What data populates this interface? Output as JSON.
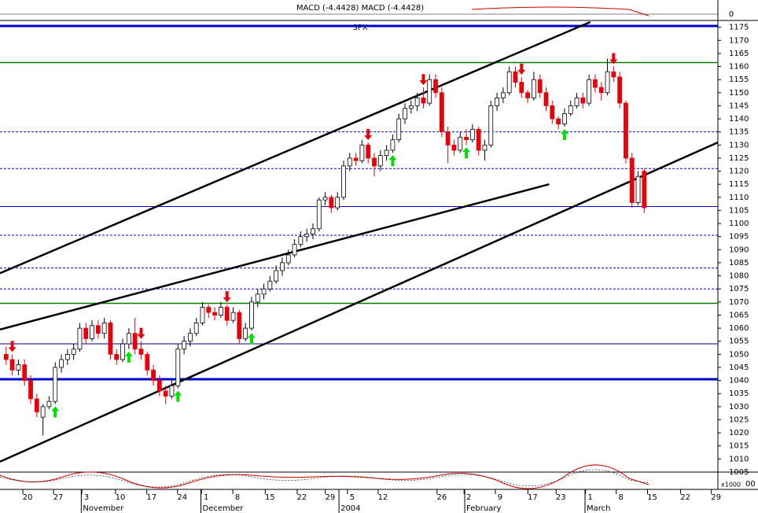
{
  "chart_data": {
    "type": "candlestick",
    "title": "SPX",
    "indicator_label": "MACD (-4.4428) MACD (-4.4428)",
    "indicator_zero_label": "0",
    "lower_panel_label": "x1000",
    "lower_panel_value_label": "00",
    "ohlc": [
      [
        1050,
        1053,
        1046,
        1048
      ],
      [
        1048,
        1050,
        1042,
        1044
      ],
      [
        1044,
        1048,
        1042,
        1046
      ],
      [
        1046,
        1048,
        1038,
        1040
      ],
      [
        1040,
        1042,
        1031,
        1033
      ],
      [
        1033,
        1035,
        1026,
        1028
      ],
      [
        1026,
        1031,
        1019,
        1030
      ],
      [
        1030,
        1034,
        1029,
        1032
      ],
      [
        1032,
        1047,
        1031,
        1045
      ],
      [
        1045,
        1050,
        1043,
        1048
      ],
      [
        1048,
        1052,
        1046,
        1050
      ],
      [
        1050,
        1054,
        1048,
        1052
      ],
      [
        1052,
        1062,
        1051,
        1060
      ],
      [
        1060,
        1062,
        1054,
        1056
      ],
      [
        1056,
        1063,
        1055,
        1061
      ],
      [
        1061,
        1063,
        1056,
        1058
      ],
      [
        1058,
        1064,
        1056,
        1062
      ],
      [
        1062,
        1063,
        1048,
        1050
      ],
      [
        1050,
        1052,
        1046,
        1048
      ],
      [
        1048,
        1056,
        1047,
        1054
      ],
      [
        1054,
        1060,
        1052,
        1058
      ],
      [
        1058,
        1064,
        1050,
        1052
      ],
      [
        1052,
        1055,
        1048,
        1050
      ],
      [
        1050,
        1051,
        1042,
        1044
      ],
      [
        1044,
        1046,
        1038,
        1040
      ],
      [
        1040,
        1042,
        1034,
        1036
      ],
      [
        1036,
        1038,
        1031,
        1034
      ],
      [
        1034,
        1040,
        1033,
        1038
      ],
      [
        1038,
        1054,
        1037,
        1052
      ],
      [
        1052,
        1057,
        1050,
        1055
      ],
      [
        1055,
        1060,
        1053,
        1058
      ],
      [
        1058,
        1064,
        1057,
        1062
      ],
      [
        1062,
        1070,
        1061,
        1068
      ],
      [
        1068,
        1069,
        1064,
        1066
      ],
      [
        1066,
        1068,
        1063,
        1065
      ],
      [
        1065,
        1070,
        1064,
        1068
      ],
      [
        1068,
        1069,
        1061,
        1063
      ],
      [
        1063,
        1068,
        1062,
        1066
      ],
      [
        1066,
        1067,
        1054,
        1056
      ],
      [
        1056,
        1062,
        1055,
        1060
      ],
      [
        1060,
        1072,
        1059,
        1070
      ],
      [
        1070,
        1075,
        1068,
        1073
      ],
      [
        1073,
        1077,
        1071,
        1075
      ],
      [
        1075,
        1080,
        1074,
        1078
      ],
      [
        1078,
        1084,
        1077,
        1082
      ],
      [
        1082,
        1087,
        1080,
        1085
      ],
      [
        1085,
        1090,
        1084,
        1088
      ],
      [
        1088,
        1094,
        1087,
        1092
      ],
      [
        1092,
        1097,
        1091,
        1095
      ],
      [
        1095,
        1098,
        1093,
        1096
      ],
      [
        1096,
        1100,
        1094,
        1098
      ],
      [
        1098,
        1110,
        1097,
        1109
      ],
      [
        1109,
        1112,
        1107,
        1110
      ],
      [
        1110,
        1111,
        1104,
        1106
      ],
      [
        1106,
        1112,
        1105,
        1110
      ],
      [
        1110,
        1124,
        1109,
        1122
      ],
      [
        1122,
        1127,
        1120,
        1125
      ],
      [
        1125,
        1127,
        1122,
        1124
      ],
      [
        1124,
        1132,
        1123,
        1130
      ],
      [
        1130,
        1131,
        1123,
        1125
      ],
      [
        1125,
        1127,
        1118,
        1122
      ],
      [
        1122,
        1128,
        1120,
        1126
      ],
      [
        1126,
        1130,
        1124,
        1128
      ],
      [
        1128,
        1134,
        1127,
        1132
      ],
      [
        1132,
        1142,
        1131,
        1140
      ],
      [
        1140,
        1146,
        1138,
        1144
      ],
      [
        1144,
        1147,
        1142,
        1145
      ],
      [
        1145,
        1150,
        1143,
        1148
      ],
      [
        1148,
        1152,
        1144,
        1146
      ],
      [
        1146,
        1157,
        1145,
        1155
      ],
      [
        1155,
        1157,
        1148,
        1150
      ],
      [
        1150,
        1152,
        1133,
        1135
      ],
      [
        1135,
        1137,
        1123,
        1130
      ],
      [
        1130,
        1132,
        1126,
        1128
      ],
      [
        1128,
        1135,
        1127,
        1133
      ],
      [
        1133,
        1136,
        1130,
        1132
      ],
      [
        1132,
        1138,
        1131,
        1136
      ],
      [
        1136,
        1137,
        1126,
        1128
      ],
      [
        1128,
        1132,
        1124,
        1130
      ],
      [
        1130,
        1147,
        1129,
        1145
      ],
      [
        1145,
        1150,
        1143,
        1148
      ],
      [
        1148,
        1152,
        1146,
        1150
      ],
      [
        1150,
        1160,
        1149,
        1158
      ],
      [
        1158,
        1160,
        1152,
        1154
      ],
      [
        1154,
        1156,
        1148,
        1150
      ],
      [
        1150,
        1151,
        1146,
        1148
      ],
      [
        1148,
        1158,
        1147,
        1155
      ],
      [
        1155,
        1157,
        1148,
        1150
      ],
      [
        1150,
        1152,
        1143,
        1145
      ],
      [
        1145,
        1147,
        1138,
        1140
      ],
      [
        1140,
        1141,
        1136,
        1138
      ],
      [
        1138,
        1144,
        1137,
        1142
      ],
      [
        1142,
        1147,
        1141,
        1145
      ],
      [
        1145,
        1150,
        1144,
        1148
      ],
      [
        1148,
        1150,
        1144,
        1146
      ],
      [
        1146,
        1157,
        1145,
        1155
      ],
      [
        1155,
        1157,
        1150,
        1152
      ],
      [
        1152,
        1154,
        1147,
        1150
      ],
      [
        1150,
        1163,
        1149,
        1158
      ],
      [
        1158,
        1160,
        1154,
        1156
      ],
      [
        1156,
        1158,
        1144,
        1146
      ],
      [
        1146,
        1147,
        1123,
        1125
      ],
      [
        1125,
        1127,
        1106,
        1108
      ],
      [
        1108,
        1120,
        1107,
        1118
      ],
      [
        1120,
        1121,
        1104,
        1106
      ]
    ],
    "up_color": "#ffffff",
    "down_color": "#e8000b",
    "xlim": [
      -1,
      116
    ],
    "ylim": [
      1005,
      1177
    ],
    "xticks": [
      {
        "value": 3.5,
        "label": "20"
      },
      {
        "value": 8.5,
        "label": "27"
      },
      {
        "value": 13.1,
        "label": "3"
      },
      {
        "value": 18.6,
        "label": "10"
      },
      {
        "value": 23.7,
        "label": "17"
      },
      {
        "value": 28.7,
        "label": "24"
      },
      {
        "value": 32.6,
        "label": "1"
      },
      {
        "value": 37.7,
        "label": "8"
      },
      {
        "value": 43,
        "label": "15"
      },
      {
        "value": 48.2,
        "label": "22"
      },
      {
        "value": 52.8,
        "label": "29"
      },
      {
        "value": 56.4,
        "label": "5"
      },
      {
        "value": 61.4,
        "label": "12"
      },
      {
        "value": 71,
        "label": "26"
      },
      {
        "value": 75.4,
        "label": "2"
      },
      {
        "value": 80.5,
        "label": "9"
      },
      {
        "value": 85.8,
        "label": "17"
      },
      {
        "value": 90.4,
        "label": "23"
      },
      {
        "value": 95.2,
        "label": "1"
      },
      {
        "value": 100.2,
        "label": "8"
      },
      {
        "value": 105.3,
        "label": "15"
      },
      {
        "value": 110.7,
        "label": "22"
      },
      {
        "value": 115.7,
        "label": "29"
      }
    ],
    "month_ticks": [
      {
        "value": 12.5,
        "label": "November"
      },
      {
        "value": 32,
        "label": "December"
      },
      {
        "value": 54.5,
        "label": "2004"
      },
      {
        "value": 75,
        "label": "February"
      },
      {
        "value": 94.6,
        "label": "March"
      }
    ],
    "yticks": [
      1005,
      1010,
      1015,
      1020,
      1025,
      1030,
      1035,
      1040,
      1045,
      1050,
      1055,
      1060,
      1065,
      1070,
      1075,
      1080,
      1085,
      1090,
      1095,
      1100,
      1105,
      1110,
      1115,
      1120,
      1125,
      1130,
      1135,
      1140,
      1145,
      1150,
      1155,
      1160,
      1165,
      1170,
      1175
    ],
    "levels": [
      {
        "value": 1175.5,
        "color": "#0000cc",
        "width": 3,
        "dashed": false
      },
      {
        "value": 1161.5,
        "color": "#008000",
        "width": 1.5,
        "dashed": false
      },
      {
        "value": 1135,
        "color": "#0000cc",
        "width": 1,
        "dashed": true
      },
      {
        "value": 1121,
        "color": "#0000cc",
        "width": 1,
        "dashed": true
      },
      {
        "value": 1106.5,
        "color": "#0000cc",
        "width": 1,
        "dashed": false
      },
      {
        "value": 1095.5,
        "color": "#0000cc",
        "width": 1,
        "dashed": true
      },
      {
        "value": 1083,
        "color": "#0000cc",
        "width": 1,
        "dashed": true
      },
      {
        "value": 1075,
        "color": "#0000cc",
        "width": 1,
        "dashed": true
      },
      {
        "value": 1069.5,
        "color": "#008000",
        "width": 1.5,
        "dashed": false
      },
      {
        "value": 1054,
        "color": "#000080",
        "width": 1,
        "dashed": false
      },
      {
        "value": 1040.5,
        "color": "#0000cc",
        "width": 3,
        "dashed": false
      }
    ],
    "trendlines": [
      {
        "x": [
          -1,
          95.2
        ],
        "y": [
          1081,
          1177
        ]
      },
      {
        "x": [
          -1,
          116
        ],
        "y": [
          1009,
          1131
        ]
      },
      {
        "x": [
          -1,
          88.5
        ],
        "y": [
          1059.5,
          1115
        ]
      }
    ],
    "sell_signals": [
      1,
      22,
      36,
      59,
      68,
      84,
      99
    ],
    "buy_signals": [
      8,
      20,
      28,
      40,
      63,
      75,
      91
    ],
    "sell_color": "#e8000b",
    "buy_color": "#00e000"
  }
}
